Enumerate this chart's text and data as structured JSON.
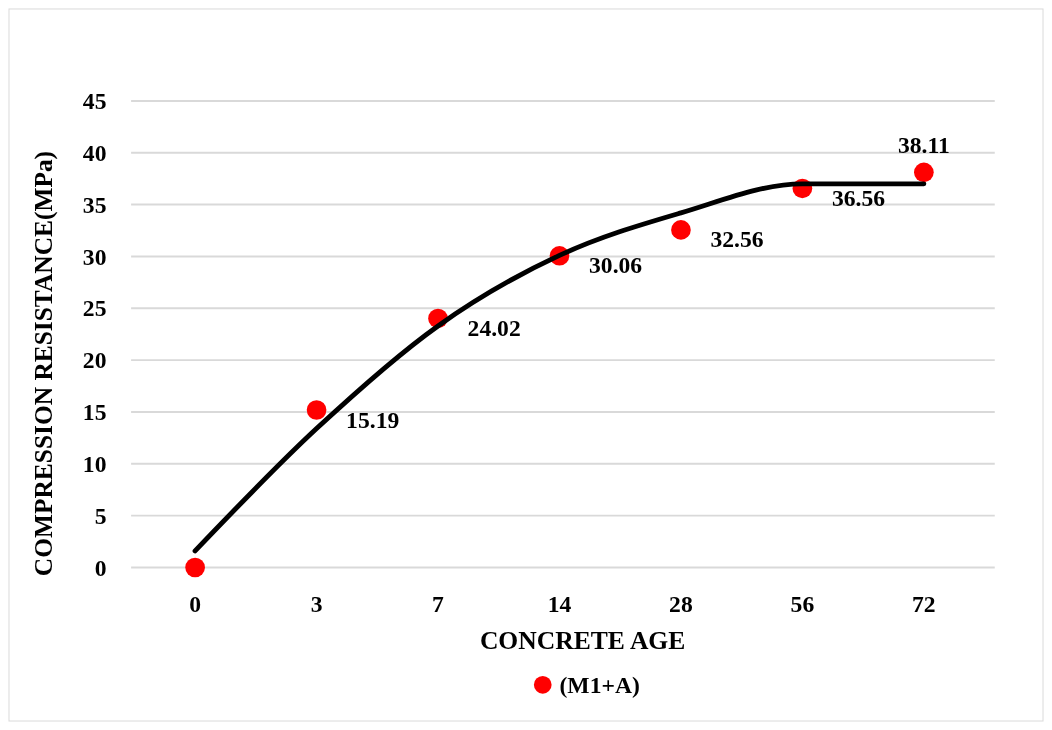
{
  "chart_data": {
    "type": "scatter",
    "xlabel": "CONCRETE AGE",
    "ylabel": "COMPRESSION RESISTANCE(MPa)",
    "categories": [
      "0",
      "3",
      "7",
      "14",
      "28",
      "56",
      "72"
    ],
    "series": [
      {
        "name": "(M1+A)",
        "color": "#ff0000",
        "marker": "circle",
        "values": [
          0,
          15.19,
          24.02,
          30.06,
          32.56,
          36.56,
          38.11
        ],
        "value_labels": [
          null,
          "15.19",
          "24.02",
          "30.06",
          "32.56",
          "36.56",
          "38.11"
        ]
      },
      {
        "type": "line",
        "marker": "none",
        "color": "#000000",
        "values": [
          1.6,
          13.4,
          23.3,
          30.1,
          34.2,
          37.0,
          37.0
        ]
      }
    ],
    "ylim": [
      0,
      45
    ],
    "yticks": [
      0,
      5,
      10,
      15,
      20,
      25,
      30,
      35,
      40,
      45
    ],
    "grid": "y",
    "legend": "bottom",
    "line_style": "solid"
  }
}
